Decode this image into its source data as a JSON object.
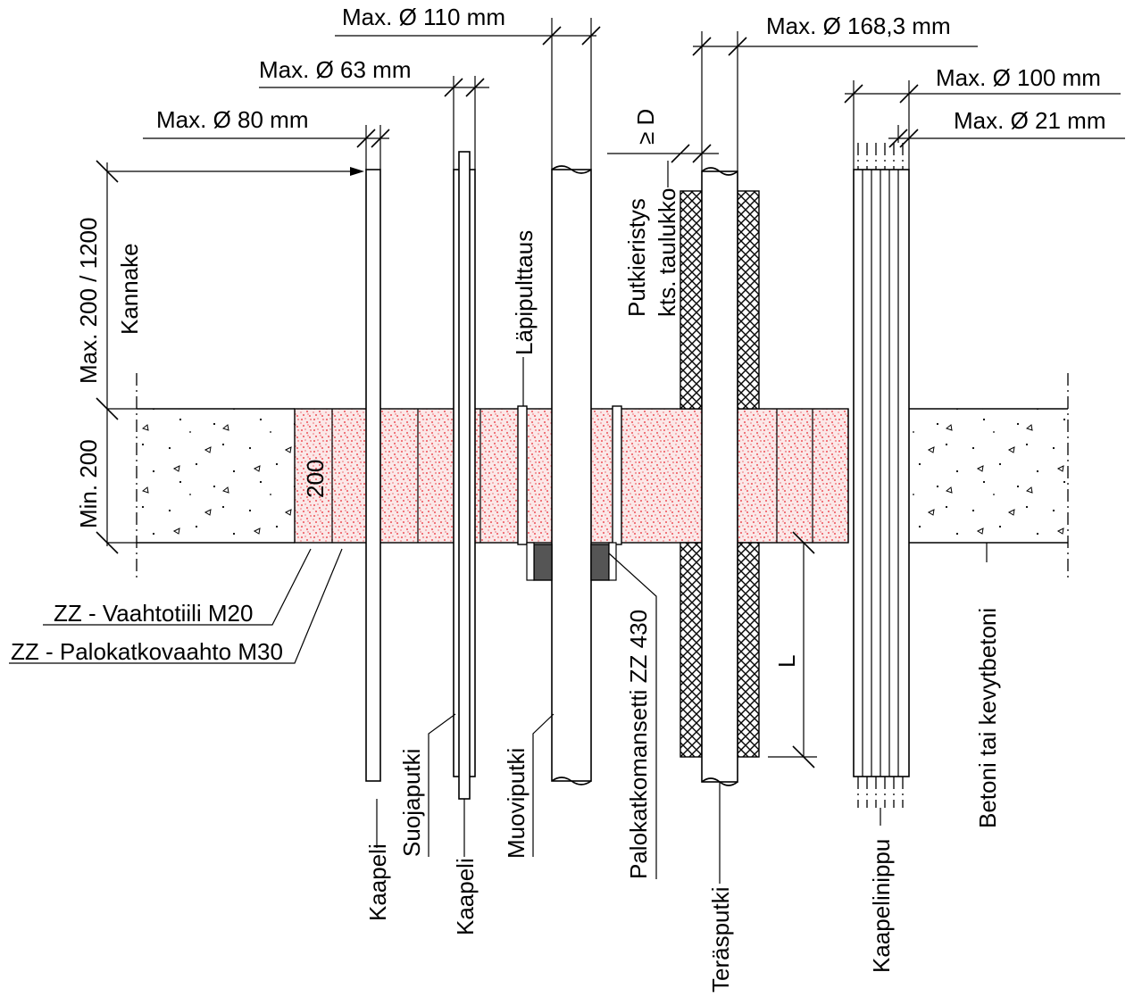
{
  "labels": {
    "max_110": "Max. Ø 110 mm",
    "max_63": "Max. Ø 63 mm",
    "max_80": "Max. Ø 80 mm",
    "max_168": "Max. Ø 168,3 mm",
    "max_100": "Max. Ø 100 mm",
    "max_21": "Max. Ø 21 mm",
    "ge_d": "≥ D",
    "putkieristys": "Putkieristys",
    "kts_taulukko": "kts. taulukko",
    "lapipulttaus": "Läpipulttaus",
    "kannake": "Kannake",
    "max_200_1200": "Max. 200 / 1200",
    "min_200": "Min. 200",
    "dim_200": "200",
    "vaahtotiili": "ZZ - Vaahtotiili M20",
    "palokatkovaahto": "ZZ - Palokatkovaahto M30",
    "kaapeli_1": "Kaapeli",
    "suojaputki": "Suojaputki",
    "kaapeli_2": "Kaapeli",
    "muoviputki": "Muoviputki",
    "palokatkomansetti": "Palokatkomansetti ZZ 430",
    "terasputki": "Teräsputki",
    "kaapelinippu": "Kaapelinippu",
    "betoni": "Betoni tai kevytbetoni",
    "dim_l": "L"
  },
  "colors": {
    "foam_dots": "#e8202a",
    "line": "#000000",
    "collar": "#555555"
  }
}
